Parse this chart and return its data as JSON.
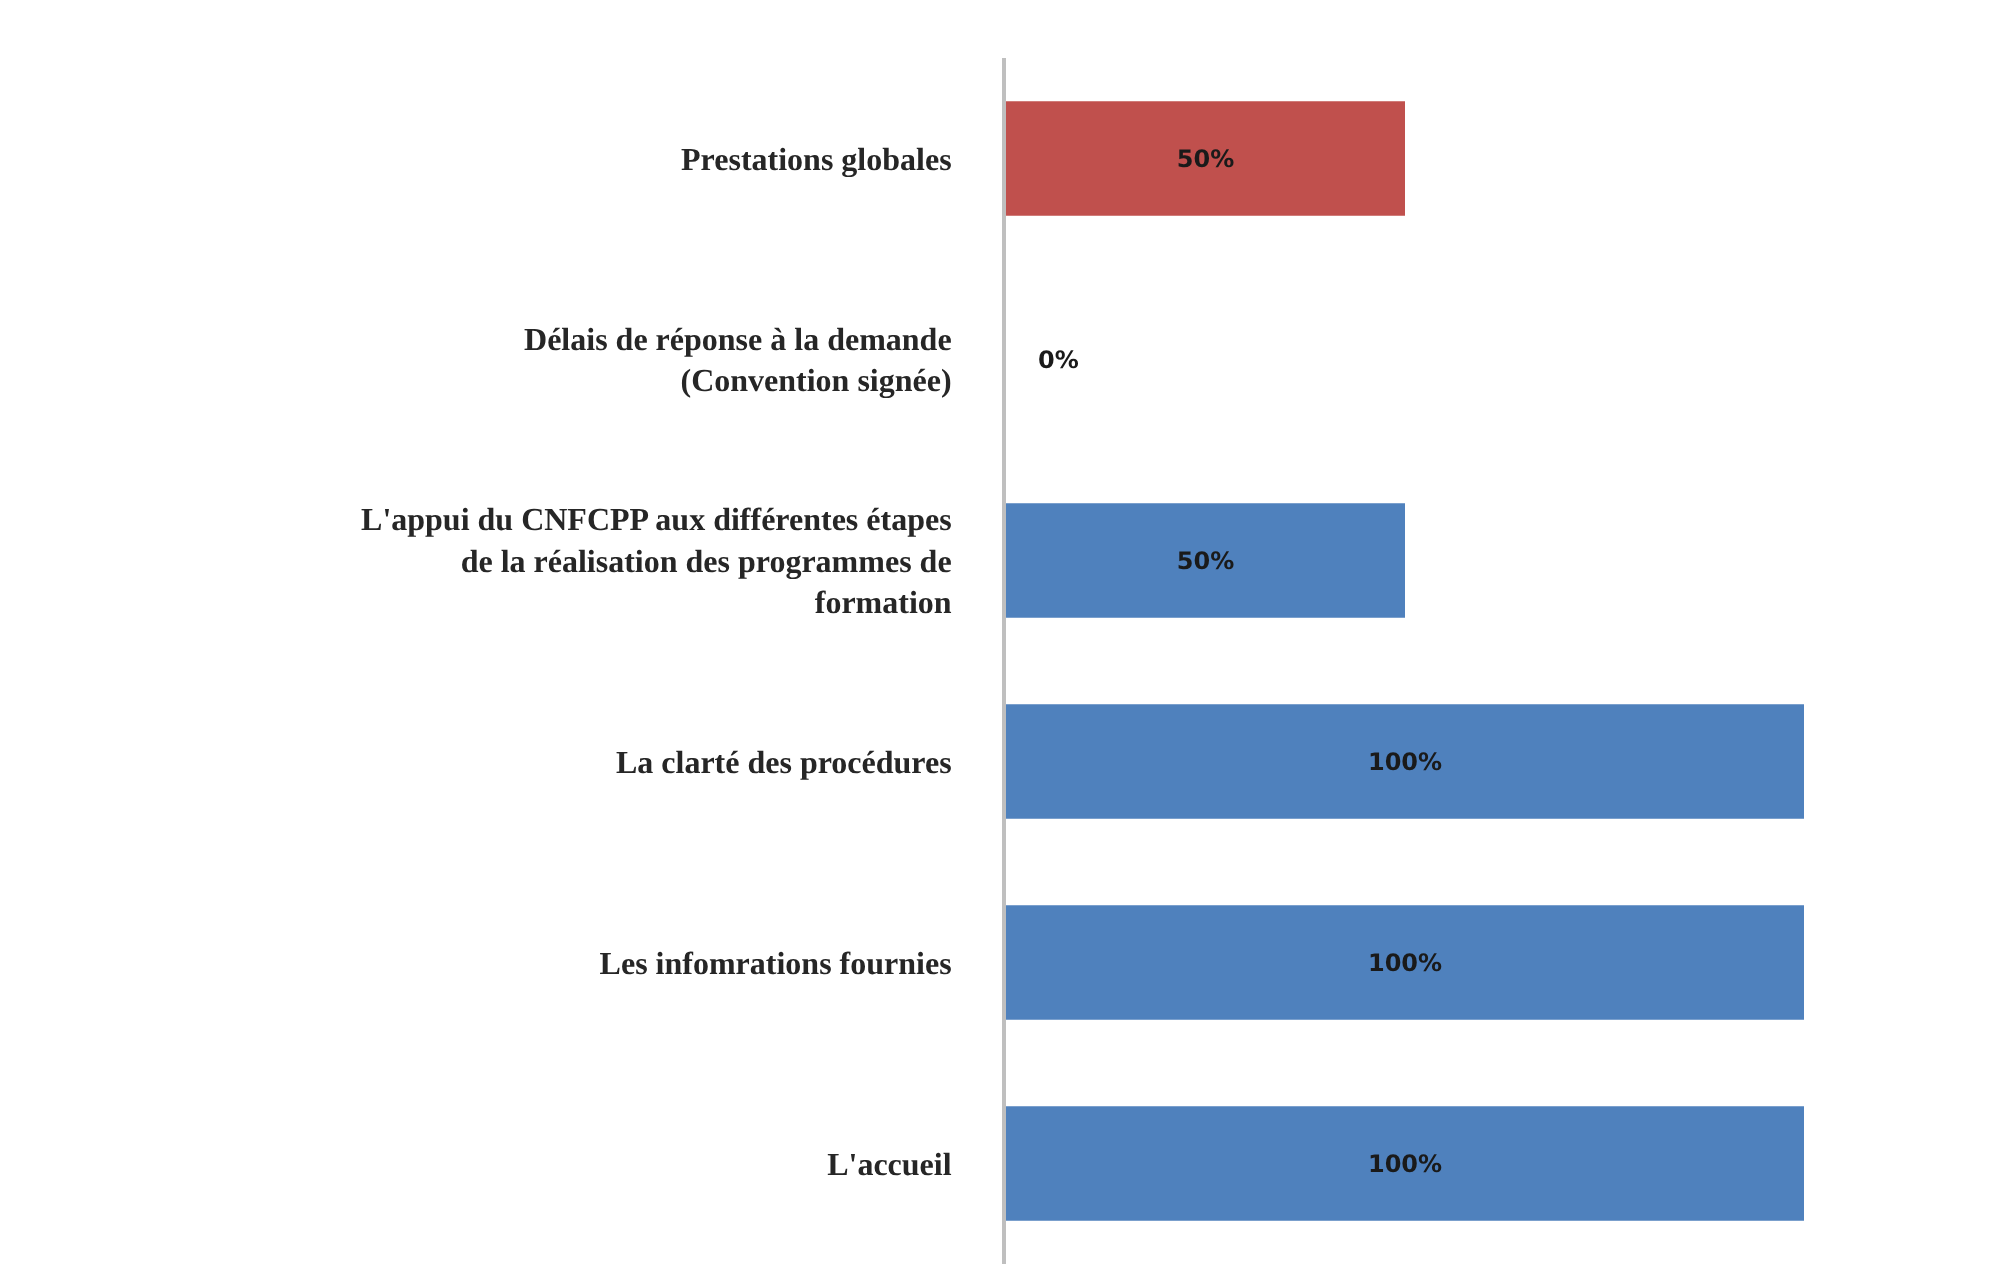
{
  "chart_data": {
    "type": "bar",
    "orientation": "horizontal",
    "categories": [
      "Prestations globales",
      "Délais de réponse à la demande (Convention signée)",
      "L'appui du CNFCPP aux différentes étapes de la réalisation des programmes de formation",
      "La clarté des procédures",
      "Les infomrations fournies",
      "L'accueil"
    ],
    "values": [
      50,
      0,
      50,
      100,
      100,
      100
    ],
    "colors": [
      "#c0504d",
      "#4f81bd",
      "#4f81bd",
      "#4f81bd",
      "#4f81bd",
      "#4f81bd"
    ],
    "value_labels": [
      "50%",
      "0%",
      "50%",
      "100%",
      "100%",
      "100%"
    ],
    "tick_labels": "y"
  }
}
